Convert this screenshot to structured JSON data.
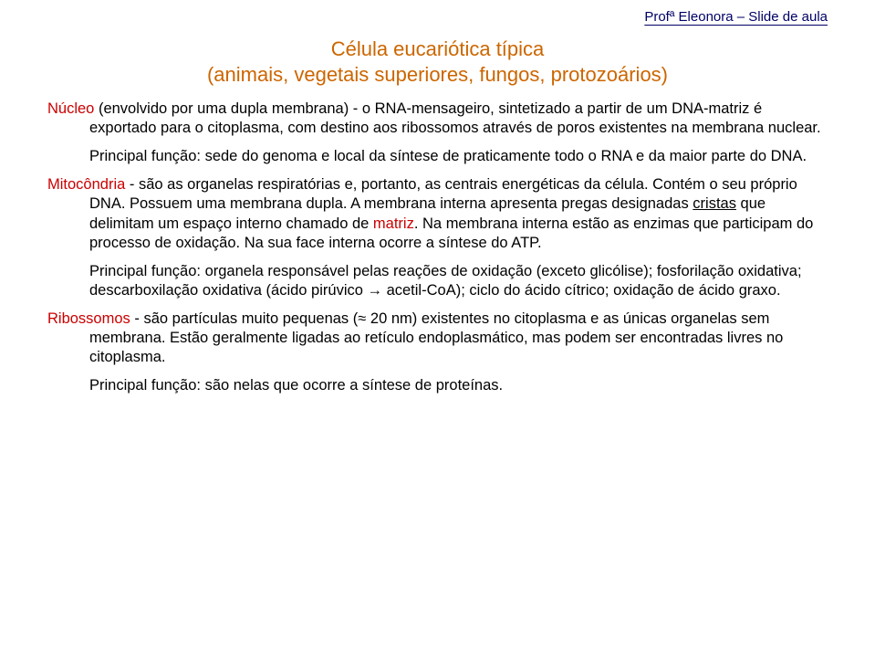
{
  "header": "Profª Eleonora – Slide de aula",
  "title": {
    "line1": "Célula eucariótica típica",
    "line2": "(animais, vegetais superiores, fungos, protozoários)"
  },
  "nucleo": {
    "term": "Núcleo",
    "rest": " (envolvido por uma dupla membrana) - o RNA-mensageiro, sintetizado a partir de um DNA-matriz é exportado para o citoplasma, com destino aos ribossomos através de poros existentes na membrana nuclear.",
    "func": "Principal função: sede do genoma e local da síntese de praticamente todo o RNA e da maior parte do DNA."
  },
  "mito": {
    "term": "Mitocôndria",
    "pre": " - são as organelas respiratórias e, portanto, as centrais energéticas da célula. Contém o seu próprio DNA. Possuem uma membrana dupla. A membrana interna apresenta pregas designadas ",
    "cristas": "cristas",
    "mid": " que delimitam um espaço interno chamado de ",
    "matriz": "matriz",
    "post": ". Na membrana interna estão as enzimas que participam do processo de oxidação. Na sua face interna ocorre a síntese do ATP.",
    "func_pre": "Principal função: organela responsável pelas reações de oxidação (exceto glicólise); fosforilação oxidativa; descarboxilação oxidativa (ácido pirúvico ",
    "arrow": "→",
    "func_post": " acetil-CoA); ciclo do ácido cítrico; oxidação de ácido graxo."
  },
  "ribo": {
    "term": "Ribossomos",
    "pre": " - são partículas muito pequenas (",
    "approx": "≈",
    "post": " 20 nm) existentes no citoplasma e as únicas organelas sem membrana. Estão geralmente ligadas ao retículo endoplasmático, mas podem ser encontradas livres no citoplasma.",
    "func": "Principal função: são nelas que ocorre a síntese de proteínas."
  },
  "colors": {
    "title": "#cc6600",
    "term": "#cc0000",
    "header": "#000066",
    "text": "#000000",
    "background": "#ffffff"
  }
}
